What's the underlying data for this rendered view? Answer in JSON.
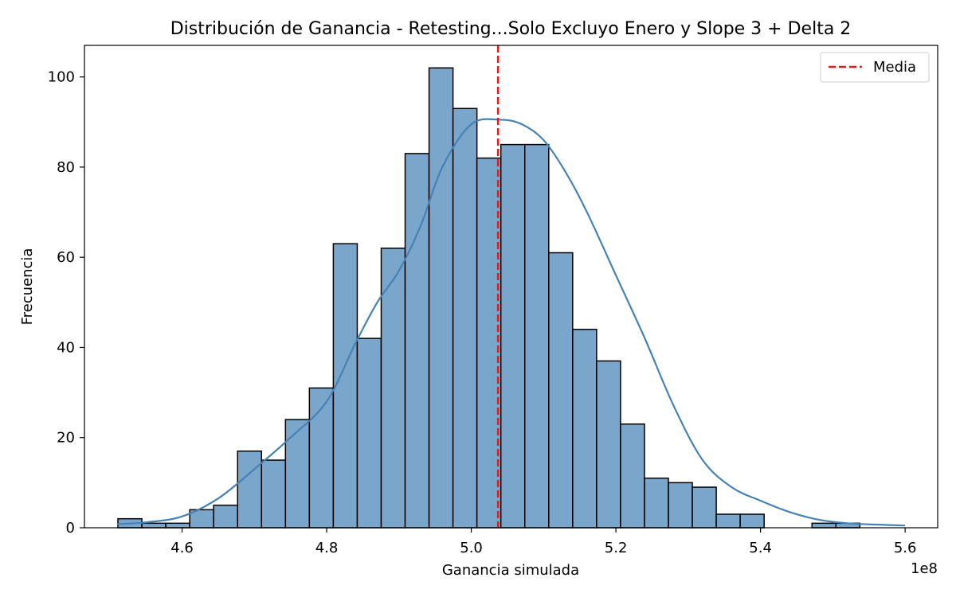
{
  "chart_data": {
    "type": "bar",
    "title": "Distribución de Ganancia - Retesting...Solo Excluyo Enero y Slope 3 + Delta 2",
    "xlabel": "Ganancia simulada",
    "ylabel": "Frecuencia",
    "x_offset_label": "1e8",
    "xlim": [
      4.465,
      5.645
    ],
    "ylim": [
      0,
      107
    ],
    "x_ticks": [
      4.6,
      4.8,
      5.0,
      5.2,
      5.4,
      5.6
    ],
    "x_tick_labels": [
      "4.6",
      "4.8",
      "5.0",
      "5.2",
      "5.4",
      "5.6"
    ],
    "y_ticks": [
      0,
      20,
      40,
      60,
      80,
      100
    ],
    "y_tick_labels": [
      "0",
      "20",
      "40",
      "60",
      "80",
      "100"
    ],
    "bin_edges": [
      4.5113,
      4.5444,
      4.5775,
      4.6106,
      4.6437,
      4.6768,
      4.7099,
      4.743,
      4.7761,
      4.8092,
      4.8423,
      4.8754,
      4.9085,
      4.9416,
      4.9747,
      5.0078,
      5.0409,
      5.074,
      5.1071,
      5.1402,
      5.1733,
      5.2064,
      5.2395,
      5.2726,
      5.3057,
      5.3388,
      5.3719,
      5.405,
      5.4381,
      5.4712,
      5.5043,
      5.5374,
      5.5705,
      5.6036
    ],
    "counts": [
      2,
      1,
      1,
      4,
      5,
      17,
      15,
      24,
      31,
      63,
      42,
      62,
      83,
      102,
      93,
      82,
      85,
      85,
      61,
      44,
      37,
      23,
      11,
      10,
      9,
      3,
      3,
      0,
      0,
      1,
      1,
      0,
      0
    ],
    "kde": {
      "x": [
        4.51,
        4.55,
        4.6,
        4.65,
        4.7,
        4.75,
        4.8,
        4.84,
        4.87,
        4.9,
        4.93,
        4.96,
        5.0,
        5.04,
        5.07,
        5.1,
        5.13,
        5.16,
        5.2,
        5.24,
        5.28,
        5.32,
        5.36,
        5.4,
        5.44,
        5.48,
        5.52,
        5.56,
        5.6
      ],
      "y": [
        0.8,
        1.2,
        2.5,
        6.5,
        13,
        20,
        28,
        41,
        50,
        57,
        67,
        80,
        89.5,
        90.5,
        89.5,
        86,
        79,
        70,
        56,
        42,
        27,
        15,
        9,
        6,
        3.5,
        1.8,
        1,
        0.7,
        0.5
      ]
    },
    "mean_line": {
      "x": 5.037,
      "label": "Media",
      "color": "#e41a1c"
    },
    "legend": {
      "placement": "top-right",
      "entries": [
        "Media"
      ]
    },
    "colors": {
      "bar_fill": "#7aa6cc",
      "bar_edge": "#000000",
      "kde_line": "#4682b4",
      "mean_line": "#e41a1c"
    },
    "grid": false
  }
}
